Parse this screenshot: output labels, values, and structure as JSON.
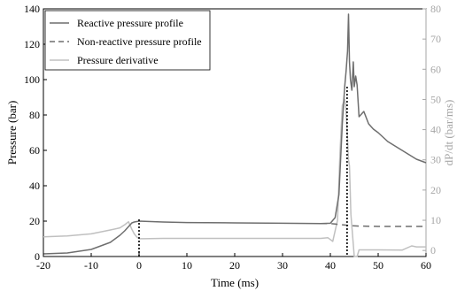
{
  "chart_data": {
    "type": "line",
    "title": "",
    "xlabel": "Time (ms)",
    "ylabel_left": "Pressure (bar)",
    "ylabel_right": "dP/dt (bar/ms)",
    "xlim": [
      -20,
      60
    ],
    "ylim_left": [
      0,
      140
    ],
    "ylim_right": [
      -2,
      80
    ],
    "xticks": [
      -20,
      -10,
      0,
      10,
      20,
      30,
      40,
      50,
      60
    ],
    "yticks_left": [
      0,
      20,
      40,
      60,
      80,
      100,
      120,
      140
    ],
    "yticks_right": [
      0,
      10,
      20,
      30,
      40,
      50,
      60,
      70,
      80
    ],
    "grid": false,
    "legend_position": "top-left",
    "vlines": [
      0,
      43.5
    ],
    "colors": {
      "reactive": "#6e6e6e",
      "nonreactive": "#6e6e6e",
      "derivative": "#c0c0c0",
      "axis": "#000000",
      "right_axis": "#a6a6a6"
    },
    "series": [
      {
        "name": "Reactive pressure profile",
        "axis": "left",
        "style": "solid",
        "x": [
          -20,
          -15,
          -10,
          -6,
          -4,
          -3,
          -2,
          -1.5,
          -1,
          0,
          5,
          10,
          20,
          30,
          38,
          40,
          41,
          41.8,
          42.5,
          43,
          43.3,
          43.6,
          43.8,
          44,
          44.2,
          44.5,
          44.8,
          45,
          45.3,
          45.6,
          46,
          47,
          48,
          49,
          50,
          52,
          55,
          58,
          60
        ],
        "y": [
          1.5,
          2,
          4,
          8,
          12,
          14.5,
          17.5,
          19,
          19.5,
          20,
          19.5,
          19.2,
          19,
          18.8,
          18.6,
          18.8,
          22,
          35,
          75,
          96,
          105,
          116,
          137,
          110,
          100,
          94,
          110,
          96,
          102,
          97,
          79,
          82,
          75,
          72,
          70,
          65,
          60,
          55,
          53
        ]
      },
      {
        "name": "Non-reactive pressure profile",
        "axis": "left",
        "style": "dashed",
        "x": [
          38,
          40,
          41,
          41.5,
          42,
          43,
          44,
          46,
          50,
          55,
          60
        ],
        "y": [
          18.6,
          18.6,
          18.4,
          18.2,
          18,
          17.8,
          17.5,
          17.2,
          17,
          17,
          17
        ]
      },
      {
        "name": "Pressure derivative",
        "axis": "right",
        "style": "solid",
        "x": [
          -20,
          -15,
          -10,
          -6,
          -4,
          -3,
          -2.2,
          -1.5,
          -1,
          -0.5,
          0,
          1,
          5,
          20,
          30,
          38,
          39.5,
          40.5,
          41.5,
          42,
          42.5,
          43,
          43.2,
          43.5,
          43.8,
          44,
          44.3,
          45,
          45.6,
          46,
          50,
          55,
          57,
          58,
          60
        ],
        "y": [
          4.5,
          4.8,
          5.5,
          6.8,
          7.5,
          8.5,
          9.5,
          7,
          5.5,
          4.5,
          3.9,
          3.9,
          4,
          4,
          4,
          4,
          4.2,
          3,
          10,
          32,
          48,
          50,
          48,
          40,
          30,
          28,
          12,
          -2,
          -2,
          0.2,
          0.2,
          0.1,
          1.5,
          1.2,
          1.2
        ]
      }
    ]
  }
}
